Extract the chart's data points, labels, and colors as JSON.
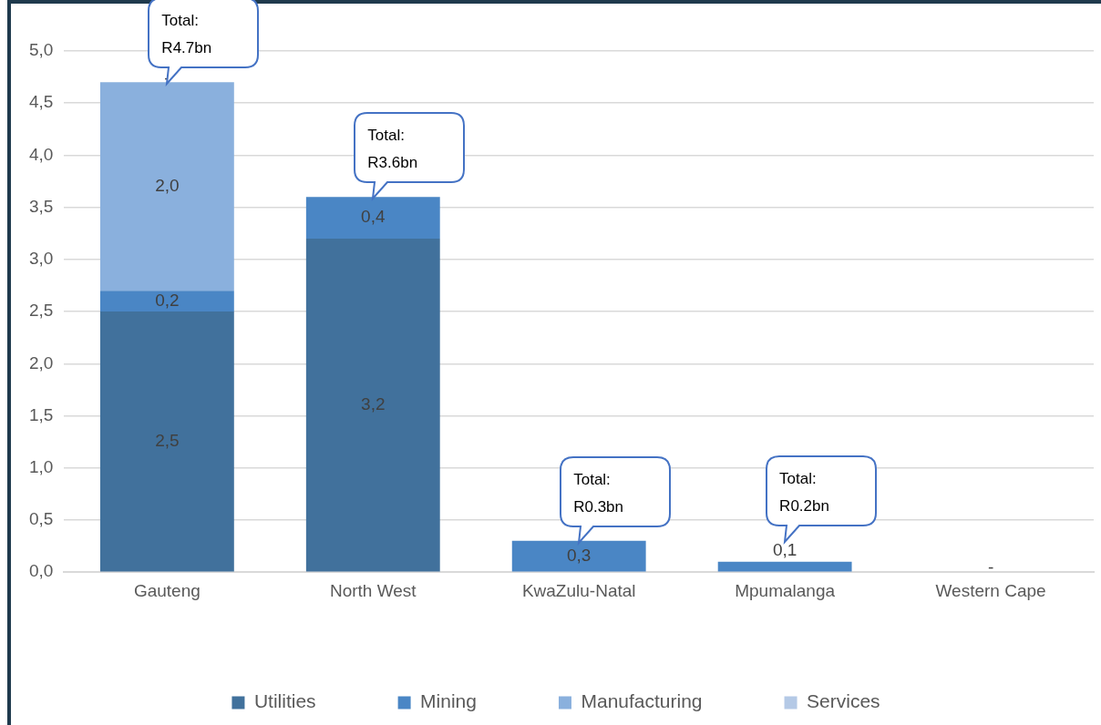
{
  "chart_data": {
    "type": "bar",
    "stacked": true,
    "categories": [
      "Gauteng",
      "North West",
      "KwaZulu-Natal",
      "Mpumalanga",
      "Western Cape"
    ],
    "series": [
      {
        "name": "Utilities",
        "color": "#41719c",
        "values": [
          2.5,
          3.2,
          null,
          null,
          null
        ],
        "value_labels": [
          "2,5",
          "3,2",
          null,
          null,
          null
        ]
      },
      {
        "name": "Mining",
        "color": "#4a86c5",
        "values": [
          0.2,
          0.4,
          0.3,
          0.1,
          null
        ],
        "value_labels": [
          "0,2",
          "0,4",
          "0,3",
          "0,1",
          null
        ]
      },
      {
        "name": "Manufacturing",
        "color": "#8ab0dd",
        "values": [
          2.0,
          null,
          null,
          null,
          null
        ],
        "value_labels": [
          "2,0",
          null,
          null,
          null,
          null
        ]
      },
      {
        "name": "Services",
        "color": "#b4c9e6",
        "values": [
          0,
          null,
          null,
          null,
          0
        ],
        "value_labels": [
          "-",
          null,
          null,
          null,
          "-"
        ]
      }
    ],
    "totals": [
      "Total: R4.7bn",
      "Total: R3.6bn",
      "Total: R0.3bn",
      "Total: R0.2bn",
      null
    ],
    "ylim": [
      0,
      5
    ],
    "yticks": [
      {
        "value": 0,
        "label": "0,0"
      },
      {
        "value": 0.5,
        "label": "0,5"
      },
      {
        "value": 1,
        "label": "1,0"
      },
      {
        "value": 1.5,
        "label": "1,5"
      },
      {
        "value": 2,
        "label": "2,0"
      },
      {
        "value": 2.5,
        "label": "2,5"
      },
      {
        "value": 3,
        "label": "3,0"
      },
      {
        "value": 3.5,
        "label": "3,5"
      },
      {
        "value": 4,
        "label": "4,0"
      },
      {
        "value": 4.5,
        "label": "4,5"
      },
      {
        "value": 5,
        "label": "5,0"
      }
    ],
    "grid": "y",
    "legend": "bottom"
  }
}
